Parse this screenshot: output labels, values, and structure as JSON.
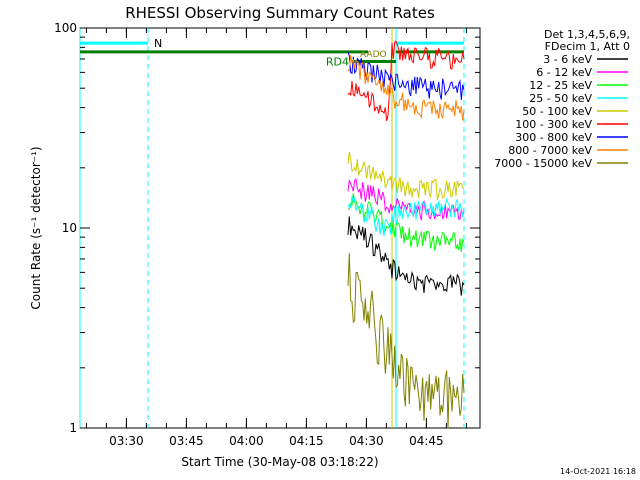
{
  "chart_data": {
    "type": "line",
    "title": "RHESSI Observing Summary Count Rates",
    "xlabel": "Start Time (30-May-08 03:18:22)",
    "ylabel": "Count Rate (s⁻¹ detector⁻¹)",
    "yscale": "log",
    "ylim": [
      1,
      100
    ],
    "xlim_minutes": [
      0,
      100
    ],
    "x_ticks": [
      {
        "minutes": 11.6,
        "label": "03:30"
      },
      {
        "minutes": 26.6,
        "label": "03:45"
      },
      {
        "minutes": 41.6,
        "label": "04:00"
      },
      {
        "minutes": 56.6,
        "label": "04:15"
      },
      {
        "minutes": 71.6,
        "label": "04:30"
      },
      {
        "minutes": 86.6,
        "label": "04:45"
      }
    ],
    "y_ticks": [
      {
        "value": 100,
        "label": "100"
      },
      {
        "value": 10,
        "label": "10"
      },
      {
        "value": 1,
        "label": "1"
      }
    ],
    "legend_header": [
      "Det 1,3,4,5,6,9,",
      "FDecim 1, Att 0"
    ],
    "legend_position": "right",
    "series": [
      {
        "name": "3 - 6 keV",
        "color": "#000000",
        "data": [
          [
            67,
            10.5
          ],
          [
            69,
            9.8
          ],
          [
            71,
            9.2
          ],
          [
            73,
            8.4
          ],
          [
            75,
            7.5
          ],
          [
            77,
            6.6
          ],
          [
            79,
            6.0
          ],
          [
            81,
            5.6
          ],
          [
            84,
            5.4
          ],
          [
            87,
            5.3
          ],
          [
            90,
            5.2
          ],
          [
            94,
            5.2
          ],
          [
            96,
            5.2
          ]
        ]
      },
      {
        "name": "6 - 12 keV",
        "color": "#ff00ff",
        "data": [
          [
            67,
            16.5
          ],
          [
            69,
            16.0
          ],
          [
            71,
            15.3
          ],
          [
            73,
            14.8
          ],
          [
            75,
            14.0
          ],
          [
            77,
            13.3
          ],
          [
            79,
            12.8
          ],
          [
            81,
            12.5
          ],
          [
            84,
            12.3
          ],
          [
            87,
            12.1
          ],
          [
            90,
            12.0
          ],
          [
            94,
            11.9
          ],
          [
            96,
            11.9
          ]
        ]
      },
      {
        "name": "12 - 25 keV",
        "color": "#00ff00",
        "data": [
          [
            67,
            14.0
          ],
          [
            69,
            13.2
          ],
          [
            71,
            12.6
          ],
          [
            73,
            11.8
          ],
          [
            75,
            11.0
          ],
          [
            77,
            10.2
          ],
          [
            79,
            9.6
          ],
          [
            81,
            9.2
          ],
          [
            84,
            8.9
          ],
          [
            87,
            8.7
          ],
          [
            90,
            8.6
          ],
          [
            94,
            8.5
          ],
          [
            96,
            8.5
          ]
        ]
      },
      {
        "name": "25 - 50 keV",
        "color": "#00ffff",
        "data": [
          [
            67,
            13.5
          ],
          [
            69,
            12.8
          ],
          [
            71,
            12.0
          ],
          [
            73,
            11.2
          ],
          [
            75,
            10.5
          ],
          [
            77,
            9.9
          ],
          [
            79,
            11.8
          ],
          [
            81,
            12.2
          ],
          [
            84,
            12.4
          ],
          [
            87,
            12.5
          ],
          [
            90,
            12.6
          ],
          [
            94,
            12.7
          ],
          [
            96,
            12.7
          ]
        ]
      },
      {
        "name": "50 - 100 keV",
        "color": "#cccc00",
        "data": [
          [
            67,
            22.5
          ],
          [
            69,
            21.0
          ],
          [
            71,
            19.8
          ],
          [
            73,
            18.5
          ],
          [
            75,
            17.8
          ],
          [
            77,
            17.0
          ],
          [
            79,
            16.5
          ],
          [
            81,
            16.2
          ],
          [
            84,
            16.0
          ],
          [
            87,
            15.8
          ],
          [
            90,
            15.7
          ],
          [
            94,
            15.6
          ],
          [
            96,
            15.6
          ]
        ]
      },
      {
        "name": "100 - 300 keV",
        "color": "#ff0000",
        "data": [
          [
            67,
            52
          ],
          [
            69,
            49
          ],
          [
            71,
            46
          ],
          [
            73,
            42
          ],
          [
            75,
            38
          ],
          [
            77,
            35
          ],
          [
            78,
            78
          ],
          [
            80,
            76
          ],
          [
            84,
            73
          ],
          [
            87,
            71
          ],
          [
            90,
            71
          ],
          [
            94,
            70
          ],
          [
            96,
            70
          ]
        ]
      },
      {
        "name": "300 - 800 keV",
        "color": "#0000ff",
        "data": [
          [
            67,
            68
          ],
          [
            69,
            66
          ],
          [
            71,
            63
          ],
          [
            73,
            60
          ],
          [
            75,
            58
          ],
          [
            77,
            56
          ],
          [
            79,
            54
          ],
          [
            81,
            52
          ],
          [
            84,
            51
          ],
          [
            87,
            50
          ],
          [
            90,
            50
          ],
          [
            94,
            49
          ],
          [
            96,
            49
          ]
        ]
      },
      {
        "name": "800 - 7000 keV",
        "color": "#ff8000",
        "data": [
          [
            67,
            68
          ],
          [
            69,
            64
          ],
          [
            71,
            60
          ],
          [
            73,
            55
          ],
          [
            75,
            51
          ],
          [
            77,
            47
          ],
          [
            79,
            44
          ],
          [
            81,
            42
          ],
          [
            84,
            41
          ],
          [
            87,
            40
          ],
          [
            90,
            39
          ],
          [
            94,
            39
          ],
          [
            96,
            39
          ]
        ]
      },
      {
        "name": "7000 - 15000 keV",
        "color": "#808000",
        "data": [
          [
            67,
            5.8
          ],
          [
            69,
            4.8
          ],
          [
            71,
            4.2
          ],
          [
            73,
            3.6
          ],
          [
            75,
            3.0
          ],
          [
            77,
            2.5
          ],
          [
            79,
            2.0
          ],
          [
            81,
            1.8
          ],
          [
            84,
            1.7
          ],
          [
            87,
            1.6
          ],
          [
            90,
            1.5
          ],
          [
            94,
            1.5
          ],
          [
            96,
            1.5
          ]
        ]
      }
    ],
    "flag_lines": [
      {
        "label": "N",
        "color": "#00ffff",
        "from": 0,
        "to": 17,
        "value": 84
      },
      {
        "label": "",
        "color": "#00ffff",
        "from": 79,
        "to": 96,
        "value": 84
      },
      {
        "label": "RD4",
        "color": "#008000",
        "from": 0,
        "to": 72,
        "value": 76
      },
      {
        "label": "",
        "color": "#008000",
        "from": 79,
        "to": 96,
        "value": 76
      },
      {
        "label": "",
        "color": "#008000",
        "from": 68,
        "to": 79,
        "value": 68
      }
    ],
    "flag_label_extra": "AADO",
    "vertical_markers": [
      {
        "minutes": 0,
        "color": "#00ffff",
        "style": "solid"
      },
      {
        "minutes": 17,
        "color": "#00ffff",
        "style": "dashed"
      },
      {
        "minutes": 78,
        "color": "#cccc00",
        "style": "solid"
      },
      {
        "minutes": 79,
        "color": "#00ffff",
        "style": "solid"
      },
      {
        "minutes": 96,
        "color": "#00ffff",
        "style": "dashed"
      }
    ]
  },
  "footer_stamp": "14-Oct-2021 16:18"
}
